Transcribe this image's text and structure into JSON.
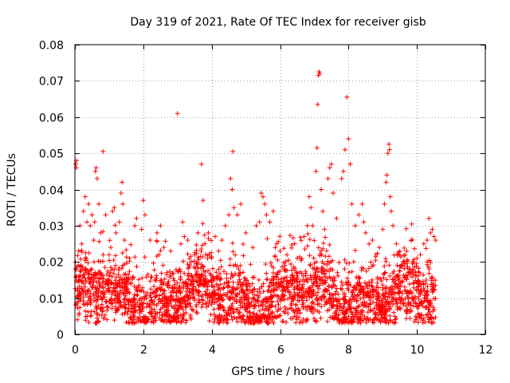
{
  "chart_data": {
    "type": "scatter",
    "title": "Day 319 of 2021, Rate Of TEC Index for receiver gisb",
    "xlabel": "GPS time / hours",
    "ylabel": "ROTI / TECUs",
    "xlim": [
      0,
      12
    ],
    "ylim": [
      0,
      0.08
    ],
    "x_ticks": [
      0,
      2,
      4,
      6,
      8,
      10,
      12
    ],
    "x_tick_labels": [
      "0",
      "2",
      "4",
      "6",
      "8",
      "10",
      "12"
    ],
    "y_ticks": [
      0,
      0.01,
      0.02,
      0.03,
      0.04,
      0.05,
      0.06,
      0.07,
      0.08
    ],
    "y_tick_labels": [
      "0",
      "0.01",
      "0.02",
      "0.03",
      "0.04",
      "0.05",
      "0.06",
      "0.07",
      "0.08"
    ],
    "grid": true,
    "marker": "+",
    "series_color": "#ff0000",
    "data_extent_hours": [
      0,
      10.55
    ],
    "series": [
      {
        "name": "ROTI",
        "points": [
          [
            0.02,
            0.047
          ],
          [
            0.04,
            0.046
          ],
          [
            0.05,
            0.048
          ],
          [
            0.08,
            0.012
          ],
          [
            0.1,
            0.019
          ],
          [
            0.15,
            0.03
          ],
          [
            0.2,
            0.025
          ],
          [
            0.25,
            0.034
          ],
          [
            0.3,
            0.038
          ],
          [
            0.35,
            0.031
          ],
          [
            0.4,
            0.036
          ],
          [
            0.45,
            0.03
          ],
          [
            0.5,
            0.033
          ],
          [
            0.55,
            0.026
          ],
          [
            0.6,
            0.045
          ],
          [
            0.62,
            0.046
          ],
          [
            0.65,
            0.043
          ],
          [
            0.58,
            0.031
          ],
          [
            0.7,
            0.036
          ],
          [
            0.75,
            0.028
          ],
          [
            0.82,
            0.0505
          ],
          [
            0.9,
            0.033
          ],
          [
            1.0,
            0.022
          ],
          [
            1.05,
            0.024
          ],
          [
            1.1,
            0.034
          ],
          [
            1.15,
            0.035
          ],
          [
            1.2,
            0.028
          ],
          [
            1.3,
            0.031
          ],
          [
            1.35,
            0.039
          ],
          [
            1.38,
            0.042
          ],
          [
            1.4,
            0.036
          ],
          [
            1.45,
            0.026
          ],
          [
            1.6,
            0.021
          ],
          [
            1.75,
            0.03
          ],
          [
            1.8,
            0.032
          ],
          [
            1.95,
            0.029
          ],
          [
            2.0,
            0.037
          ],
          [
            2.05,
            0.033
          ],
          [
            2.2,
            0.026
          ],
          [
            2.4,
            0.028
          ],
          [
            2.5,
            0.03
          ],
          [
            2.6,
            0.024
          ],
          [
            2.8,
            0.023
          ],
          [
            3.0,
            0.061
          ],
          [
            3.1,
            0.025
          ],
          [
            3.15,
            0.031
          ],
          [
            3.2,
            0.027
          ],
          [
            3.3,
            0.026
          ],
          [
            3.4,
            0.02
          ],
          [
            3.5,
            0.022
          ],
          [
            3.6,
            0.028
          ],
          [
            3.7,
            0.047
          ],
          [
            3.75,
            0.037
          ],
          [
            3.9,
            0.028
          ],
          [
            4.1,
            0.027
          ],
          [
            4.2,
            0.023
          ],
          [
            4.3,
            0.026
          ],
          [
            4.4,
            0.03
          ],
          [
            4.5,
            0.033
          ],
          [
            4.55,
            0.043
          ],
          [
            4.6,
            0.04
          ],
          [
            4.62,
            0.0505
          ],
          [
            4.65,
            0.035
          ],
          [
            4.75,
            0.033
          ],
          [
            4.85,
            0.036
          ],
          [
            5.0,
            0.028
          ],
          [
            5.2,
            0.024
          ],
          [
            5.3,
            0.03
          ],
          [
            5.4,
            0.031
          ],
          [
            5.45,
            0.039
          ],
          [
            5.5,
            0.038
          ],
          [
            5.55,
            0.036
          ],
          [
            5.6,
            0.033
          ],
          [
            5.7,
            0.031
          ],
          [
            5.8,
            0.034
          ],
          [
            5.9,
            0.025
          ],
          [
            6.0,
            0.023
          ],
          [
            6.2,
            0.022
          ],
          [
            6.5,
            0.021
          ],
          [
            6.7,
            0.027
          ],
          [
            6.8,
            0.03
          ],
          [
            6.85,
            0.038
          ],
          [
            6.9,
            0.035
          ],
          [
            6.95,
            0.03
          ],
          [
            7.05,
            0.045
          ],
          [
            7.08,
            0.0515
          ],
          [
            7.1,
            0.0635
          ],
          [
            7.12,
            0.0715
          ],
          [
            7.14,
            0.0725
          ],
          [
            7.16,
            0.072
          ],
          [
            7.2,
            0.04
          ],
          [
            7.25,
            0.034
          ],
          [
            7.3,
            0.029
          ],
          [
            7.4,
            0.043
          ],
          [
            7.45,
            0.046
          ],
          [
            7.5,
            0.047
          ],
          [
            7.55,
            0.039
          ],
          [
            7.65,
            0.032
          ],
          [
            7.8,
            0.043
          ],
          [
            7.85,
            0.045
          ],
          [
            7.9,
            0.051
          ],
          [
            7.95,
            0.0655
          ],
          [
            8.0,
            0.054
          ],
          [
            8.05,
            0.047
          ],
          [
            8.1,
            0.036
          ],
          [
            8.2,
            0.03
          ],
          [
            8.3,
            0.033
          ],
          [
            8.4,
            0.036
          ],
          [
            8.45,
            0.031
          ],
          [
            8.5,
            0.028
          ],
          [
            8.6,
            0.025
          ],
          [
            8.7,
            0.026
          ],
          [
            8.8,
            0.022
          ],
          [
            8.9,
            0.024
          ],
          [
            9.0,
            0.029
          ],
          [
            9.05,
            0.036
          ],
          [
            9.1,
            0.042
          ],
          [
            9.12,
            0.044
          ],
          [
            9.15,
            0.05
          ],
          [
            9.18,
            0.0525
          ],
          [
            9.2,
            0.051
          ],
          [
            9.22,
            0.038
          ],
          [
            9.25,
            0.034
          ],
          [
            9.3,
            0.03
          ],
          [
            9.4,
            0.025
          ],
          [
            9.5,
            0.022
          ],
          [
            9.6,
            0.02
          ],
          [
            9.7,
            0.023
          ],
          [
            9.8,
            0.018
          ],
          [
            9.9,
            0.02
          ],
          [
            10.0,
            0.021
          ],
          [
            10.1,
            0.022
          ],
          [
            10.2,
            0.025
          ],
          [
            10.3,
            0.026
          ],
          [
            10.35,
            0.032
          ],
          [
            10.4,
            0.028
          ],
          [
            10.45,
            0.029
          ],
          [
            10.5,
            0.027
          ],
          [
            10.55,
            0.026
          ]
        ]
      }
    ]
  }
}
